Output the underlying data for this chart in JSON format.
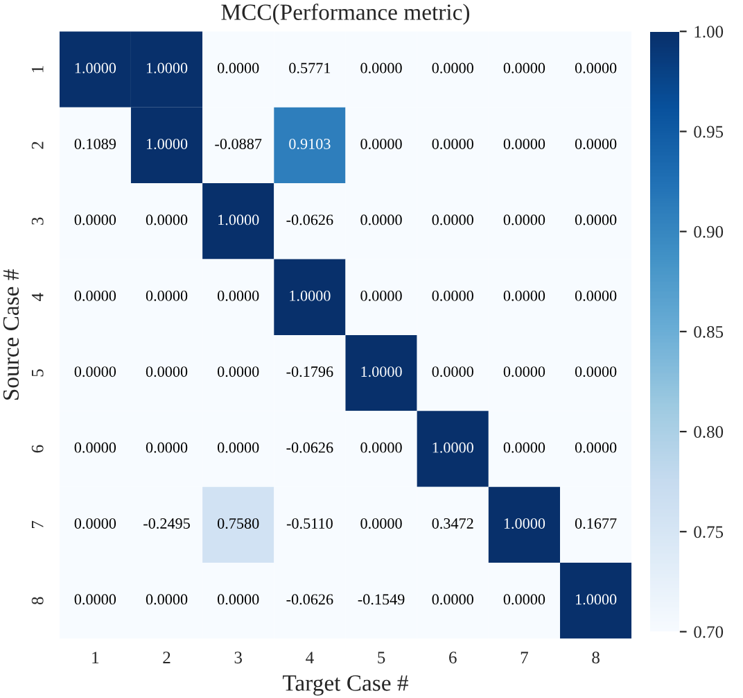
{
  "chart_data": {
    "type": "heatmap",
    "title": "MCC(Performance metric)",
    "xlabel": "Target Case #",
    "ylabel": "Source Case #",
    "categories": [
      "1",
      "2",
      "3",
      "4",
      "5",
      "6",
      "7",
      "8"
    ],
    "y_categories": [
      "1",
      "2",
      "3",
      "4",
      "5",
      "6",
      "7",
      "8"
    ],
    "cells": [
      [
        1.0,
        1.0,
        0.0,
        0.5771,
        0.0,
        0.0,
        0.0,
        0.0
      ],
      [
        0.1089,
        1.0,
        -0.0887,
        0.9103,
        0.0,
        0.0,
        0.0,
        0.0
      ],
      [
        0.0,
        0.0,
        1.0,
        -0.0626,
        0.0,
        0.0,
        0.0,
        0.0
      ],
      [
        0.0,
        0.0,
        0.0,
        1.0,
        0.0,
        0.0,
        0.0,
        0.0
      ],
      [
        0.0,
        0.0,
        0.0,
        -0.1796,
        1.0,
        0.0,
        0.0,
        0.0
      ],
      [
        0.0,
        0.0,
        0.0,
        -0.0626,
        0.0,
        1.0,
        0.0,
        0.0
      ],
      [
        0.0,
        -0.2495,
        0.758,
        -0.511,
        0.0,
        0.3472,
        1.0,
        0.1677
      ],
      [
        0.0,
        0.0,
        0.0,
        -0.0626,
        -0.1549,
        0.0,
        0.0,
        1.0
      ]
    ],
    "cell_labels": [
      [
        "1.0000",
        "1.0000",
        "0.0000",
        "0.5771",
        "0.0000",
        "0.0000",
        "0.0000",
        "0.0000"
      ],
      [
        "0.1089",
        "1.0000",
        "-0.0887",
        "0.9103",
        "0.0000",
        "0.0000",
        "0.0000",
        "0.0000"
      ],
      [
        "0.0000",
        "0.0000",
        "1.0000",
        "-0.0626",
        "0.0000",
        "0.0000",
        "0.0000",
        "0.0000"
      ],
      [
        "0.0000",
        "0.0000",
        "0.0000",
        "1.0000",
        "0.0000",
        "0.0000",
        "0.0000",
        "0.0000"
      ],
      [
        "0.0000",
        "0.0000",
        "0.0000",
        "-0.1796",
        "1.0000",
        "0.0000",
        "0.0000",
        "0.0000"
      ],
      [
        "0.0000",
        "0.0000",
        "0.0000",
        "-0.0626",
        "0.0000",
        "1.0000",
        "0.0000",
        "0.0000"
      ],
      [
        "0.0000",
        "-0.2495",
        "0.7580",
        "-0.5110",
        "0.0000",
        "0.3472",
        "1.0000",
        "0.1677"
      ],
      [
        "0.0000",
        "0.0000",
        "0.0000",
        "-0.0626",
        "-0.1549",
        "0.0000",
        "0.0000",
        "1.0000"
      ]
    ],
    "clim": [
      0.7,
      1.0
    ],
    "cticks": [
      {
        "value": 0.7,
        "label": "0.70"
      },
      {
        "value": 0.75,
        "label": "0.75"
      },
      {
        "value": 0.8,
        "label": "0.80"
      },
      {
        "value": 0.85,
        "label": "0.85"
      },
      {
        "value": 0.9,
        "label": "0.90"
      },
      {
        "value": 0.95,
        "label": "0.95"
      },
      {
        "value": 1.0,
        "label": "1.00"
      }
    ]
  }
}
